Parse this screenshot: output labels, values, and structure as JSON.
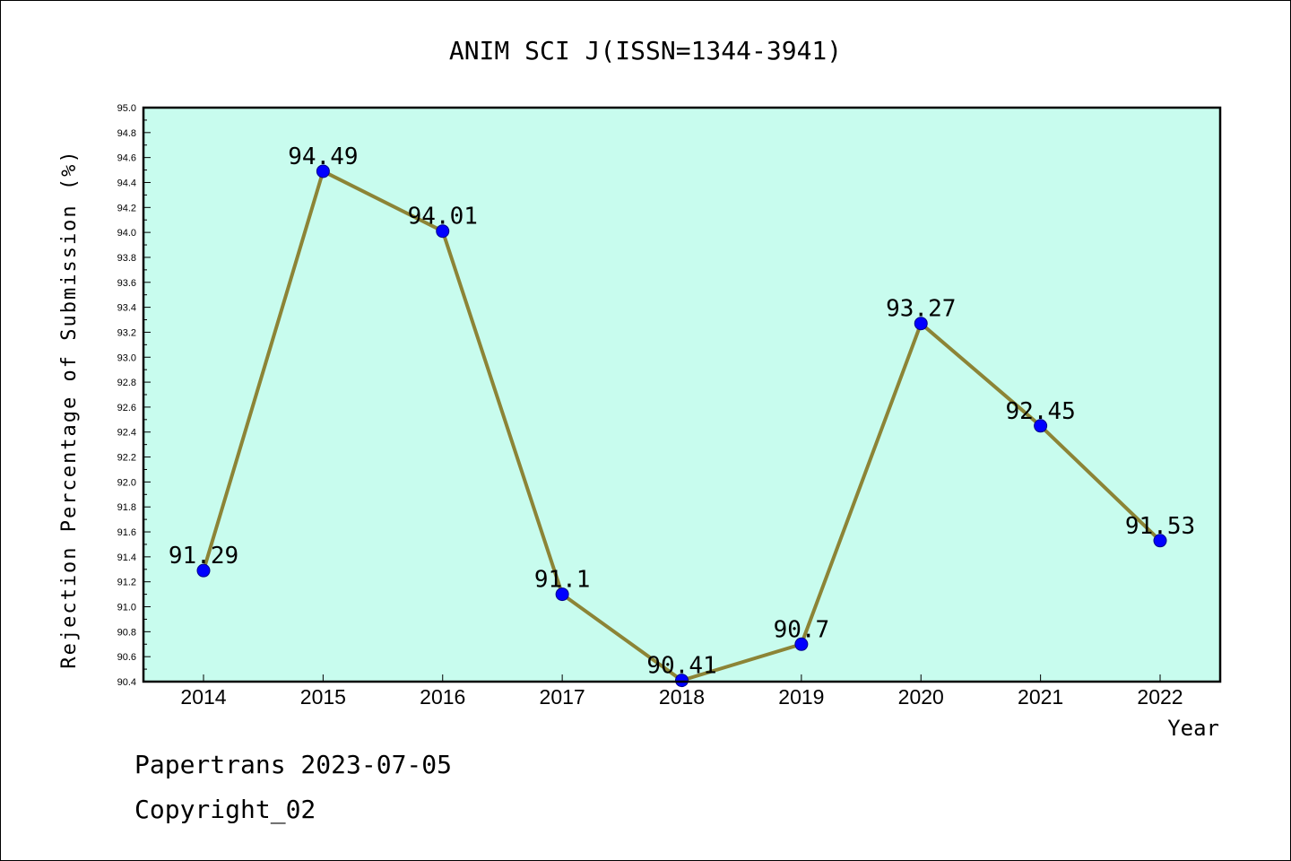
{
  "chart_data": {
    "type": "line",
    "title": "ANIM SCI J(ISSN=1344-3941)",
    "xlabel": "Year",
    "ylabel": "Rejection Percentage of Submission (%)",
    "categories": [
      "2014",
      "2015",
      "2016",
      "2017",
      "2018",
      "2019",
      "2020",
      "2021",
      "2022"
    ],
    "series": [
      {
        "values": [
          91.29,
          94.49,
          94.01,
          91.1,
          90.41,
          90.7,
          93.27,
          92.45,
          91.53
        ],
        "labels": [
          "91.29",
          "94.49",
          "94.01",
          "91.1",
          "90.41",
          "90.7",
          "93.27",
          "92.45",
          "91.53"
        ]
      }
    ],
    "ylim": [
      90.4,
      95.0
    ],
    "yticks": [
      "90.4",
      "90.6",
      "90.8",
      "91.0",
      "91.2",
      "91.4",
      "91.6",
      "91.8",
      "92.0",
      "92.2",
      "92.4",
      "92.6",
      "92.8",
      "93.0",
      "93.2",
      "93.4",
      "93.6",
      "93.8",
      "94.0",
      "94.2",
      "94.4",
      "94.6",
      "94.8",
      "95.0"
    ],
    "grid": false,
    "colors": {
      "plot_bg": "#c8fcee",
      "line": "#8c8436",
      "marker": "#0000ff",
      "frame": "#000000"
    }
  },
  "footer": {
    "line1": "Papertrans 2023-07-05",
    "line2": "Copyright_02"
  }
}
